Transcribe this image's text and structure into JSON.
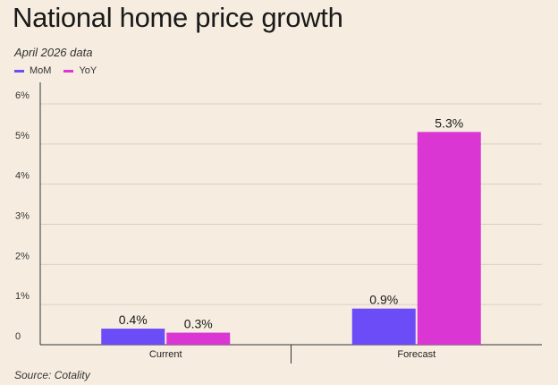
{
  "header": {
    "title": "National home price growth",
    "subtitle": "April 2026 data"
  },
  "footer": {
    "source": "Source: Cotality"
  },
  "colors": {
    "mom": "#6b4cf6",
    "yoy": "#d936d4",
    "grid": "#d9d0c2",
    "axis": "#333333"
  },
  "chart_data": {
    "type": "bar",
    "title": "National home price growth",
    "subtitle": "April 2026 data",
    "xlabel": "",
    "ylabel": "",
    "categories": [
      "Current",
      "Forecast"
    ],
    "series": [
      {
        "name": "MoM",
        "values": [
          0.4,
          0.9
        ],
        "labels": [
          "0.4%",
          "0.9%"
        ]
      },
      {
        "name": "YoY",
        "values": [
          0.3,
          5.3
        ],
        "labels": [
          "0.3%",
          "5.3%"
        ]
      }
    ],
    "ylim": [
      0,
      6
    ],
    "yticks": [
      0,
      1,
      2,
      3,
      4,
      5,
      6
    ],
    "ytick_labels": [
      "0",
      "1%",
      "2%",
      "3%",
      "4%",
      "5%",
      "6%"
    ],
    "grid": true,
    "legend_position": "top-left"
  }
}
